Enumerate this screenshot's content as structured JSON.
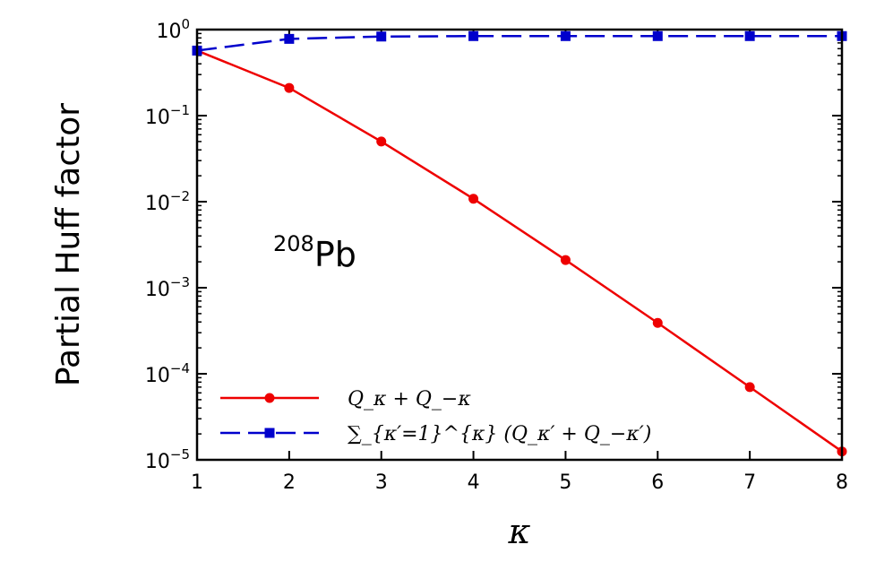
{
  "chart_data": {
    "type": "line",
    "x_scale": "linear",
    "y_scale": "log",
    "xlim": [
      1,
      8
    ],
    "ylim": [
      1e-05,
      1
    ],
    "xlabel": "κ",
    "ylabel": "Partial Huff factor",
    "x_ticks": [
      "1",
      "2",
      "3",
      "4",
      "5",
      "6",
      "7",
      "8"
    ],
    "y_ticks": [
      {
        "value": 1e-05,
        "base": "10",
        "exp": "−5"
      },
      {
        "value": 0.0001,
        "base": "10",
        "exp": "−4"
      },
      {
        "value": 0.001,
        "base": "10",
        "exp": "−3"
      },
      {
        "value": 0.01,
        "base": "10",
        "exp": "−2"
      },
      {
        "value": 0.1,
        "base": "10",
        "exp": "−1"
      },
      {
        "value": 1,
        "base": "10",
        "exp": "0"
      }
    ],
    "annotation": {
      "mass": "208",
      "element": "Pb"
    },
    "legend_position": "lower-left",
    "series": [
      {
        "name": "Q_κ + Q_−κ",
        "color": "#ee0000",
        "line_style": "solid",
        "marker": "circle",
        "x": [
          1,
          2,
          3,
          4,
          5,
          6,
          7,
          8
        ],
        "y": [
          0.57,
          0.21,
          0.05,
          0.0108,
          0.0021,
          0.00039,
          7e-05,
          1.25e-05
        ]
      },
      {
        "name": "∑_{κ′=1}^{κ} (Q_κ′ + Q_−κ′)",
        "color": "#0000cc",
        "line_style": "dashed",
        "marker": "square",
        "x": [
          1,
          2,
          3,
          4,
          5,
          6,
          7,
          8
        ],
        "y": [
          0.57,
          0.78,
          0.83,
          0.84,
          0.84,
          0.84,
          0.84,
          0.84
        ]
      }
    ]
  }
}
